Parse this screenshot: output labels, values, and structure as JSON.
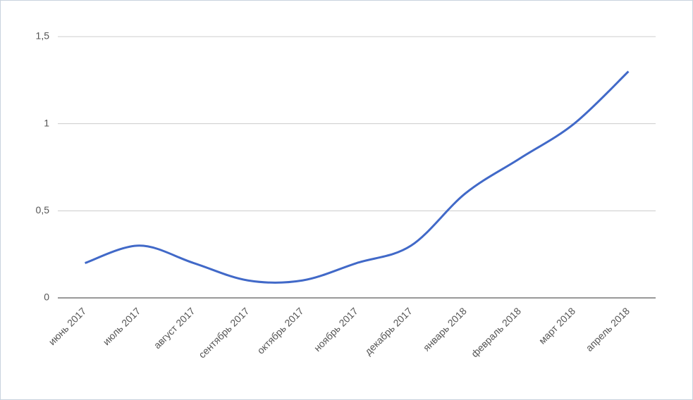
{
  "chart_data": {
    "type": "line",
    "categories": [
      "июнь 2017",
      "июль 2017",
      "август 2017",
      "сентябрь 2017",
      "октябрь 2017",
      "ноябрь 2017",
      "декабрь 2017",
      "январь 2018",
      "февраль 2018",
      "март 2018",
      "апрель 2018"
    ],
    "values": [
      0.2,
      0.3,
      0.2,
      0.1,
      0.1,
      0.2,
      0.3,
      0.6,
      0.8,
      1.0,
      1.3
    ],
    "color": "#4169c8",
    "ylim": [
      0,
      1.5
    ],
    "yticks": [
      0,
      {
        "value": 0.5,
        "label": "0,5"
      },
      1,
      {
        "value": 1.5,
        "label": "1,5"
      }
    ],
    "grid": true
  }
}
